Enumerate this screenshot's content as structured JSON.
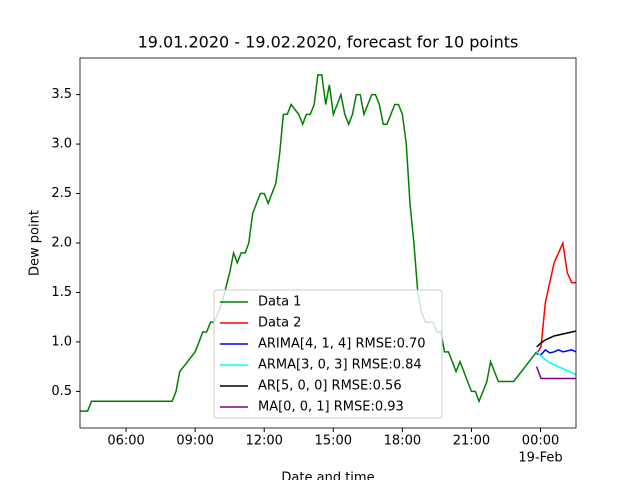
{
  "chart_data": {
    "type": "line",
    "title": "19.01.2020 - 19.02.2020, forecast for 10 points",
    "x_label": "Date and time",
    "y_label": "Dew point",
    "x_date_label": "19-Feb",
    "xlim": [
      4,
      25.54
    ],
    "ylim": [
      0.13,
      3.87
    ],
    "xticks": [
      {
        "value": 6,
        "label": "06:00"
      },
      {
        "value": 9,
        "label": "09:00"
      },
      {
        "value": 12,
        "label": "12:00"
      },
      {
        "value": 15,
        "label": "15:00"
      },
      {
        "value": 18,
        "label": "18:00"
      },
      {
        "value": 21,
        "label": "21:00"
      },
      {
        "value": 24,
        "label": "00:00"
      }
    ],
    "yticks": [
      0.5,
      {
        "value": 1,
        "label": "1.0"
      },
      1.5,
      {
        "value": 2,
        "label": "2.0"
      },
      2.5,
      {
        "value": 3,
        "label": "3.0"
      },
      3.5
    ],
    "legend": "lower center",
    "series": [
      {
        "name": "Data 1",
        "color": "#008000",
        "x": [
          4.0,
          4.33,
          4.5,
          8.0,
          8.17,
          8.33,
          8.67,
          9.0,
          9.17,
          9.33,
          9.5,
          9.67,
          9.83,
          10.0,
          10.17,
          10.5,
          10.67,
          10.83,
          11.0,
          11.17,
          11.33,
          11.5,
          11.83,
          12.0,
          12.17,
          12.5,
          12.67,
          12.83,
          13.0,
          13.17,
          13.5,
          13.67,
          13.83,
          14.0,
          14.17,
          14.33,
          14.5,
          14.67,
          14.83,
          15.0,
          15.17,
          15.33,
          15.5,
          15.67,
          15.83,
          16.0,
          16.17,
          16.33,
          16.5,
          16.67,
          16.83,
          17.0,
          17.17,
          17.33,
          17.5,
          17.67,
          17.83,
          18.0,
          18.17,
          18.33,
          18.5,
          18.67,
          18.83,
          19.0,
          19.17,
          19.33,
          19.5,
          19.67,
          19.83,
          20.0,
          20.17,
          20.33,
          20.5,
          20.67,
          20.83,
          21.0,
          21.17,
          21.33,
          21.5,
          21.67,
          21.83,
          22.0,
          22.17,
          22.5,
          22.83,
          23.17,
          23.5,
          23.83
        ],
        "values": [
          0.3,
          0.3,
          0.4,
          0.4,
          0.5,
          0.7,
          0.8,
          0.9,
          1.0,
          1.1,
          1.1,
          1.2,
          1.2,
          1.3,
          1.4,
          1.7,
          1.9,
          1.8,
          1.9,
          1.9,
          2.0,
          2.3,
          2.5,
          2.5,
          2.4,
          2.6,
          2.9,
          3.3,
          3.3,
          3.4,
          3.3,
          3.2,
          3.3,
          3.3,
          3.4,
          3.7,
          3.7,
          3.4,
          3.6,
          3.3,
          3.4,
          3.5,
          3.3,
          3.2,
          3.3,
          3.5,
          3.5,
          3.3,
          3.4,
          3.5,
          3.5,
          3.4,
          3.2,
          3.2,
          3.3,
          3.4,
          3.4,
          3.3,
          3.0,
          2.4,
          2.0,
          1.5,
          1.3,
          1.2,
          1.2,
          1.2,
          1.1,
          1.1,
          0.9,
          0.9,
          0.8,
          0.7,
          0.8,
          0.7,
          0.6,
          0.5,
          0.5,
          0.4,
          0.5,
          0.6,
          0.8,
          0.7,
          0.6,
          0.6,
          0.6,
          0.7,
          0.8,
          0.9
        ]
      },
      {
        "name": "Data 2",
        "color": "#ff0000",
        "x": [
          23.83,
          24.02,
          24.21,
          24.4,
          24.59,
          24.78,
          24.97,
          25.16,
          25.35,
          25.54
        ],
        "values": [
          0.88,
          0.95,
          1.4,
          1.6,
          1.8,
          1.9,
          2.0,
          1.7,
          1.6,
          1.6
        ]
      },
      {
        "name": "ARIMA[4, 1, 4] RMSE:0.70",
        "color": "#0000ff",
        "x": [
          23.83,
          24.02,
          24.21,
          24.4,
          24.59,
          24.78,
          24.97,
          25.16,
          25.35,
          25.54
        ],
        "values": [
          0.88,
          0.87,
          0.92,
          0.89,
          0.9,
          0.92,
          0.9,
          0.91,
          0.92,
          0.9
        ]
      },
      {
        "name": "ARMA[3, 0, 3] RMSE:0.84",
        "color": "#00ffff",
        "x": [
          23.83,
          24.02,
          24.21,
          24.4,
          24.59,
          24.78,
          24.97,
          25.16,
          25.35,
          25.54
        ],
        "values": [
          0.9,
          0.86,
          0.82,
          0.79,
          0.77,
          0.75,
          0.73,
          0.71,
          0.69,
          0.67
        ]
      },
      {
        "name": "AR[5, 0, 0] RMSE:0.56",
        "color": "#000000",
        "x": [
          23.83,
          24.02,
          24.21,
          24.4,
          24.59,
          24.78,
          24.97,
          25.16,
          25.35,
          25.54
        ],
        "values": [
          0.95,
          0.99,
          1.02,
          1.04,
          1.06,
          1.07,
          1.08,
          1.09,
          1.1,
          1.11
        ]
      },
      {
        "name": "MA[0, 0, 1] RMSE:0.93",
        "color": "#800080",
        "x": [
          23.83,
          24.02,
          24.21,
          24.4,
          24.59,
          24.78,
          24.97,
          25.16,
          25.35,
          25.54
        ],
        "values": [
          0.75,
          0.63,
          0.63,
          0.63,
          0.63,
          0.63,
          0.63,
          0.63,
          0.63,
          0.63
        ]
      }
    ]
  }
}
